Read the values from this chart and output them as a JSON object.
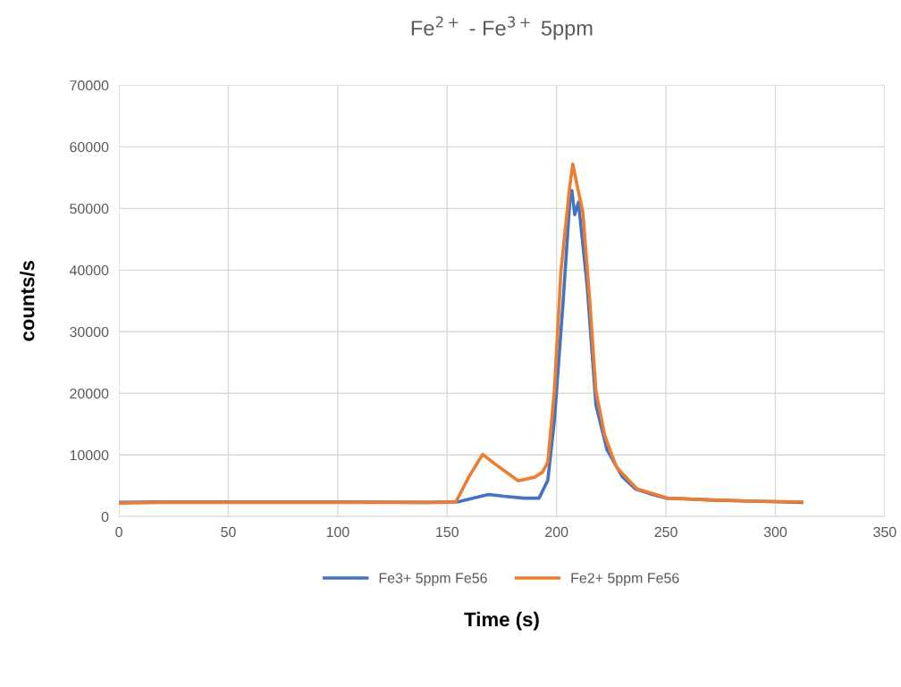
{
  "chart_data": {
    "type": "line",
    "title": "Fe$^{2+}$ - Fe$^{3+}$ 5ppm",
    "xlabel": "Time (s)",
    "ylabel": "counts/s",
    "xlim": [
      0,
      350
    ],
    "ylim": [
      0,
      70000
    ],
    "xticks": [
      0,
      50,
      100,
      150,
      200,
      250,
      300,
      350
    ],
    "yticks": [
      0,
      10000,
      20000,
      30000,
      40000,
      50000,
      60000,
      70000
    ],
    "grid": true,
    "legend": "bottom",
    "series": [
      {
        "name": "Fe3+ 5ppm Fe56",
        "color": "#4472c4",
        "x": [
          0,
          20,
          50,
          100,
          140,
          155,
          162,
          169,
          176,
          185,
          192,
          196,
          199,
          203,
          206.2,
          207,
          208.3,
          210,
          214,
          218,
          223,
          230,
          236,
          243.8,
          250,
          270,
          290,
          312
        ],
        "values": [
          2300,
          2400,
          2400,
          2400,
          2300,
          2400,
          3000,
          3600,
          3300,
          3000,
          3000,
          5900,
          15600,
          34900,
          51900,
          52900,
          49000,
          51000,
          37400,
          18100,
          10900,
          6500,
          4500,
          3600,
          3000,
          2700,
          2500,
          2300
        ]
      },
      {
        "name": "Fe2+ 5ppm Fe56",
        "color": "#ed7d31",
        "x": [
          0,
          20,
          50,
          100,
          140,
          150,
          154,
          160,
          166.2,
          172,
          182.5,
          190,
          193.5,
          196,
          199,
          202,
          205.8,
          207.4,
          209.9,
          212,
          215.2,
          218,
          222,
          227.4,
          236.8,
          250.7,
          270,
          290,
          312
        ],
        "values": [
          2200,
          2300,
          2300,
          2300,
          2300,
          2300,
          2400,
          6500,
          10100,
          8500,
          5800,
          6400,
          7200,
          8800,
          20400,
          39800,
          52900,
          57200,
          52900,
          49400,
          34900,
          20400,
          13200,
          8000,
          4500,
          3000,
          2700,
          2500,
          2400
        ]
      }
    ]
  }
}
